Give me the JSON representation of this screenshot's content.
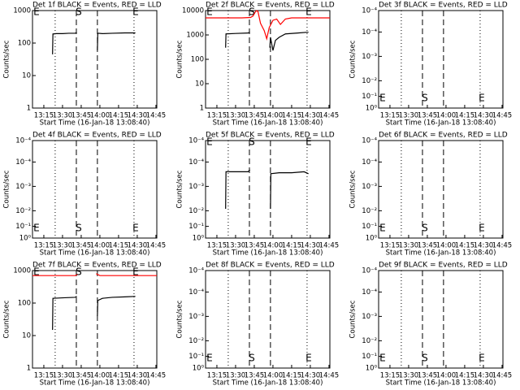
{
  "chart_data": [
    {
      "type": "line",
      "title": "Det 1f BLACK = Events, RED = LLD",
      "x_label": "Start Time (16-Jan-18 13:08:40)",
      "y_label": "Counts/sec",
      "xlim": [
        5.9,
        105.7
      ],
      "xticks": [
        {
          "value": 15,
          "label": "13:15"
        },
        {
          "value": 30,
          "label": "13:30"
        },
        {
          "value": 45,
          "label": "13:45"
        },
        {
          "value": 60,
          "label": "14:00"
        },
        {
          "value": 75,
          "label": "14:15"
        },
        {
          "value": 90,
          "label": "14:30"
        },
        {
          "value": 105,
          "label": "14:45"
        }
      ],
      "log_y": true,
      "ylim": [
        1,
        1000
      ],
      "yticks": [
        1,
        10,
        100,
        1000
      ],
      "dotted_lines": [
        24.1,
        87.4
      ],
      "dashed_lines": [
        41.1,
        58.0
      ],
      "marker_row": "top",
      "markers": [
        {
          "label": "E",
          "x": 9.1
        },
        {
          "label": "S",
          "x": 43
        },
        {
          "label": "E",
          "x": 88.7
        }
      ],
      "series": [
        {
          "color": "#000000",
          "x": [
            22,
            22.3,
            25,
            30,
            35,
            40,
            41.5,
            50,
            58,
            58.3,
            62,
            70,
            80,
            88.5
          ],
          "values": [
            45,
            190,
            195,
            195,
            200,
            200,
            210,
            null,
            60,
            200,
            195,
            200,
            205,
            205
          ]
        }
      ]
    },
    {
      "type": "line",
      "title": "Det 2f BLACK = Events, RED = LLD",
      "x_label": "Start Time (16-Jan-18 13:08:40)",
      "y_label": "Counts/sec",
      "xlim": [
        5.9,
        105.7
      ],
      "xticks": [
        {
          "value": 15,
          "label": "13:15"
        },
        {
          "value": 30,
          "label": "13:30"
        },
        {
          "value": 45,
          "label": "13:45"
        },
        {
          "value": 60,
          "label": "14:00"
        },
        {
          "value": 75,
          "label": "14:15"
        },
        {
          "value": 90,
          "label": "14:30"
        },
        {
          "value": 105,
          "label": "14:45"
        }
      ],
      "log_y": true,
      "ylim": [
        1,
        10000
      ],
      "yticks": [
        1,
        10,
        100,
        1000,
        10000
      ],
      "dotted_lines": [
        24.1,
        87.4
      ],
      "dashed_lines": [
        41.1,
        58.0
      ],
      "marker_row": "top",
      "markers": [
        {
          "label": "E",
          "x": 9.1
        },
        {
          "label": "S",
          "x": 43
        },
        {
          "label": "E",
          "x": 88.7
        }
      ],
      "series": [
        {
          "color": "#000000",
          "x": [
            22,
            22.3,
            30,
            40,
            41.5,
            50,
            57.5,
            58,
            60,
            62,
            65,
            70,
            80,
            88.5
          ],
          "values": [
            300,
            1100,
            1150,
            1200,
            1300,
            null,
            300,
            800,
            230,
            600,
            800,
            1100,
            1200,
            1300
          ]
        },
        {
          "color": "#ff0000",
          "x": [
            5.9,
            20,
            35,
            42,
            44,
            46,
            47,
            48,
            50,
            53,
            55,
            57,
            60,
            63,
            66,
            70,
            75,
            90,
            105.7
          ],
          "values": [
            5000,
            5000,
            5000,
            5200,
            6000,
            9000,
            10000,
            9000,
            3000,
            1500,
            700,
            2000,
            4000,
            4500,
            2700,
            4500,
            5000,
            5000,
            5000
          ]
        }
      ]
    },
    {
      "type": "line",
      "title": "Det 3f BLACK = Events, RED = LLD",
      "x_label": "Start Time (16-Jan-18 13:08:40)",
      "y_label": "Counts/sec",
      "xlim": [
        5.9,
        105.7
      ],
      "xticks": [
        {
          "value": 15,
          "label": "13:15"
        },
        {
          "value": 30,
          "label": "13:30"
        },
        {
          "value": 45,
          "label": "13:45"
        },
        {
          "value": 60,
          "label": "14:00"
        },
        {
          "value": 75,
          "label": "14:15"
        },
        {
          "value": 90,
          "label": "14:30"
        },
        {
          "value": 105,
          "label": "14:45"
        }
      ],
      "log_y": false,
      "ylim": [
        0,
        1
      ],
      "yticks": [
        {
          "value": 0,
          "label": "10⁰"
        },
        {
          "value": 0.12,
          "label": "10⁻¹"
        },
        {
          "value": 0.28,
          "label": "10⁻²"
        },
        {
          "value": 0.53,
          "label": "10⁻³"
        },
        {
          "value": 0.78,
          "label": "10⁻⁴"
        },
        {
          "value": 1,
          "label": "10⁻⁴"
        }
      ],
      "dotted_lines": [
        24.1,
        87.4
      ],
      "dashed_lines": [
        41.1,
        58.0
      ],
      "marker_row": "bottom",
      "markers": [
        {
          "label": "E",
          "x": 9.1
        },
        {
          "label": "S",
          "x": 43
        },
        {
          "label": "E",
          "x": 88.7
        }
      ]
    },
    {
      "type": "line",
      "title": "Det 4f BLACK = Events, RED = LLD",
      "x_label": "Start Time (16-Jan-18 13:08:40)",
      "y_label": "Counts/sec",
      "xlim": [
        5.9,
        105.7
      ],
      "xticks": [
        {
          "value": 15,
          "label": "13:15"
        },
        {
          "value": 30,
          "label": "13:30"
        },
        {
          "value": 45,
          "label": "13:45"
        },
        {
          "value": 60,
          "label": "14:00"
        },
        {
          "value": 75,
          "label": "14:15"
        },
        {
          "value": 90,
          "label": "14:30"
        },
        {
          "value": 105,
          "label": "14:45"
        }
      ],
      "log_y": false,
      "ylim": [
        0,
        1
      ],
      "yticks": [
        {
          "value": 0,
          "label": "10⁰"
        },
        {
          "value": 0.12,
          "label": "10⁻¹"
        },
        {
          "value": 0.28,
          "label": "10⁻²"
        },
        {
          "value": 0.53,
          "label": "10⁻³"
        },
        {
          "value": 0.78,
          "label": "10⁻⁴"
        },
        {
          "value": 1,
          "label": "10⁻⁴"
        }
      ],
      "dotted_lines": [
        24.1,
        87.4
      ],
      "dashed_lines": [
        41.1,
        58.0
      ],
      "marker_row": "bottom",
      "markers": [
        {
          "label": "E",
          "x": 9.1
        },
        {
          "label": "S",
          "x": 43
        },
        {
          "label": "E",
          "x": 88.7
        }
      ]
    },
    {
      "type": "line",
      "title": "Det 5f BLACK = Events, RED = LLD",
      "x_label": "Start Time (16-Jan-18 13:08:40)",
      "y_label": "Counts/sec",
      "xlim": [
        5.9,
        105.7
      ],
      "xticks": [
        {
          "value": 15,
          "label": "13:15"
        },
        {
          "value": 30,
          "label": "13:30"
        },
        {
          "value": 45,
          "label": "13:45"
        },
        {
          "value": 60,
          "label": "14:00"
        },
        {
          "value": 75,
          "label": "14:15"
        },
        {
          "value": 90,
          "label": "14:30"
        },
        {
          "value": 105,
          "label": "14:45"
        }
      ],
      "log_y": false,
      "ylim": [
        0,
        1
      ],
      "yticks": [
        {
          "value": 0,
          "label": "10⁰"
        },
        {
          "value": 0.12,
          "label": "10⁻¹"
        },
        {
          "value": 0.28,
          "label": "10⁻²"
        },
        {
          "value": 0.53,
          "label": "10⁻³"
        },
        {
          "value": 0.78,
          "label": "10⁻⁴"
        },
        {
          "value": 1,
          "label": "10⁻⁴"
        }
      ],
      "dotted_lines": [
        24.1,
        87.4
      ],
      "dashed_lines": [
        41.1,
        58.0
      ],
      "marker_row": "top",
      "markers": [
        {
          "label": "E",
          "x": 9.1
        },
        {
          "label": "S",
          "x": 43
        },
        {
          "label": "E",
          "x": 88.7
        }
      ],
      "series": [
        {
          "color": "#000000",
          "x": [
            22,
            22.3,
            30,
            40,
            41.5,
            50,
            58,
            58.3,
            65,
            75,
            85,
            88.5
          ],
          "values": [
            0.3,
            0.68,
            0.68,
            0.68,
            0.7,
            null,
            0.3,
            0.66,
            0.67,
            0.67,
            0.68,
            0.66
          ]
        }
      ]
    },
    {
      "type": "line",
      "title": "Det 6f BLACK = Events, RED = LLD",
      "x_label": "Start Time (16-Jan-18 13:08:40)",
      "y_label": "Counts/sec",
      "xlim": [
        5.9,
        105.7
      ],
      "xticks": [
        {
          "value": 15,
          "label": "13:15"
        },
        {
          "value": 30,
          "label": "13:30"
        },
        {
          "value": 45,
          "label": "13:45"
        },
        {
          "value": 60,
          "label": "14:00"
        },
        {
          "value": 75,
          "label": "14:15"
        },
        {
          "value": 90,
          "label": "14:30"
        },
        {
          "value": 105,
          "label": "14:45"
        }
      ],
      "log_y": false,
      "ylim": [
        0,
        1
      ],
      "yticks": [
        {
          "value": 0,
          "label": "10⁰"
        },
        {
          "value": 0.12,
          "label": "10⁻¹"
        },
        {
          "value": 0.28,
          "label": "10⁻²"
        },
        {
          "value": 0.53,
          "label": "10⁻³"
        },
        {
          "value": 0.78,
          "label": "10⁻⁴"
        },
        {
          "value": 1,
          "label": "10⁻⁴"
        }
      ],
      "dotted_lines": [
        24.1,
        87.4
      ],
      "dashed_lines": [
        41.1,
        58.0
      ],
      "marker_row": "bottom",
      "markers": [
        {
          "label": "E",
          "x": 9.1
        },
        {
          "label": "S",
          "x": 43
        },
        {
          "label": "E",
          "x": 88.7
        }
      ]
    },
    {
      "type": "line",
      "title": "Det 7f BLACK = Events, RED = LLD",
      "x_label": "Start Time (16-Jan-18 13:08:40)",
      "y_label": "Counts/sec",
      "xlim": [
        5.9,
        105.7
      ],
      "xticks": [
        {
          "value": 15,
          "label": "13:15"
        },
        {
          "value": 30,
          "label": "13:30"
        },
        {
          "value": 45,
          "label": "13:45"
        },
        {
          "value": 60,
          "label": "14:00"
        },
        {
          "value": 75,
          "label": "14:15"
        },
        {
          "value": 90,
          "label": "14:30"
        },
        {
          "value": 105,
          "label": "14:45"
        }
      ],
      "log_y": true,
      "ylim": [
        1,
        1000
      ],
      "yticks": [
        1,
        10,
        100,
        1000
      ],
      "dotted_lines": [
        24.1,
        87.4
      ],
      "dashed_lines": [
        41.1,
        58.0
      ],
      "marker_row": "top",
      "markers": [
        {
          "label": "E",
          "x": 9.1
        },
        {
          "label": "S",
          "x": 43
        },
        {
          "label": "E",
          "x": 88.7
        }
      ],
      "series": [
        {
          "color": "#000000",
          "x": [
            22,
            22.3,
            30,
            40,
            41.5,
            50,
            58,
            58.3,
            62,
            70,
            80,
            88.5
          ],
          "values": [
            15,
            140,
            145,
            150,
            160,
            null,
            40,
            120,
            140,
            150,
            155,
            160
          ]
        },
        {
          "color": "#ff0000",
          "x": [
            5.9,
            20,
            40,
            42,
            50,
            57,
            60,
            80,
            105.7
          ],
          "values": [
            700,
            700,
            700,
            750,
            null,
            800,
            700,
            700,
            700
          ]
        }
      ]
    },
    {
      "type": "line",
      "title": "Det 8f BLACK = Events, RED = LLD",
      "x_label": "Start Time (16-Jan-18 13:08:40)",
      "y_label": "Counts/sec",
      "xlim": [
        5.9,
        105.7
      ],
      "xticks": [
        {
          "value": 15,
          "label": "13:15"
        },
        {
          "value": 30,
          "label": "13:30"
        },
        {
          "value": 45,
          "label": "13:45"
        },
        {
          "value": 60,
          "label": "14:00"
        },
        {
          "value": 75,
          "label": "14:15"
        },
        {
          "value": 90,
          "label": "14:30"
        },
        {
          "value": 105,
          "label": "14:45"
        }
      ],
      "log_y": false,
      "ylim": [
        0,
        1
      ],
      "yticks": [
        {
          "value": 0,
          "label": "10⁰"
        },
        {
          "value": 0.12,
          "label": "10⁻¹"
        },
        {
          "value": 0.28,
          "label": "10⁻²"
        },
        {
          "value": 0.53,
          "label": "10⁻³"
        },
        {
          "value": 0.78,
          "label": "10⁻⁴"
        },
        {
          "value": 1,
          "label": "10⁻⁴"
        }
      ],
      "dotted_lines": [
        24.1,
        87.4
      ],
      "dashed_lines": [
        41.1,
        58.0
      ],
      "marker_row": "bottom",
      "markers": [
        {
          "label": "E",
          "x": 9.1
        },
        {
          "label": "S",
          "x": 43
        },
        {
          "label": "E",
          "x": 88.7
        }
      ]
    },
    {
      "type": "line",
      "title": "Det 9f BLACK = Events, RED = LLD",
      "x_label": "Start Time (16-Jan-18 13:08:40)",
      "y_label": "Counts/sec",
      "xlim": [
        5.9,
        105.7
      ],
      "xticks": [
        {
          "value": 15,
          "label": "13:15"
        },
        {
          "value": 30,
          "label": "13:30"
        },
        {
          "value": 45,
          "label": "13:45"
        },
        {
          "value": 60,
          "label": "14:00"
        },
        {
          "value": 75,
          "label": "14:15"
        },
        {
          "value": 90,
          "label": "14:30"
        },
        {
          "value": 105,
          "label": "14:45"
        }
      ],
      "log_y": false,
      "ylim": [
        0,
        1
      ],
      "yticks": [
        {
          "value": 0,
          "label": "10⁰"
        },
        {
          "value": 0.12,
          "label": "10⁻¹"
        },
        {
          "value": 0.28,
          "label": "10⁻²"
        },
        {
          "value": 0.53,
          "label": "10⁻³"
        },
        {
          "value": 0.78,
          "label": "10⁻⁴"
        },
        {
          "value": 1,
          "label": "10⁻⁴"
        }
      ],
      "dotted_lines": [
        24.1,
        87.4
      ],
      "dashed_lines": [
        41.1,
        58.0
      ],
      "marker_row": "bottom",
      "markers": [
        {
          "label": "E",
          "x": 9.1
        },
        {
          "label": "S",
          "x": 43
        },
        {
          "label": "E",
          "x": 88.7
        }
      ]
    }
  ]
}
